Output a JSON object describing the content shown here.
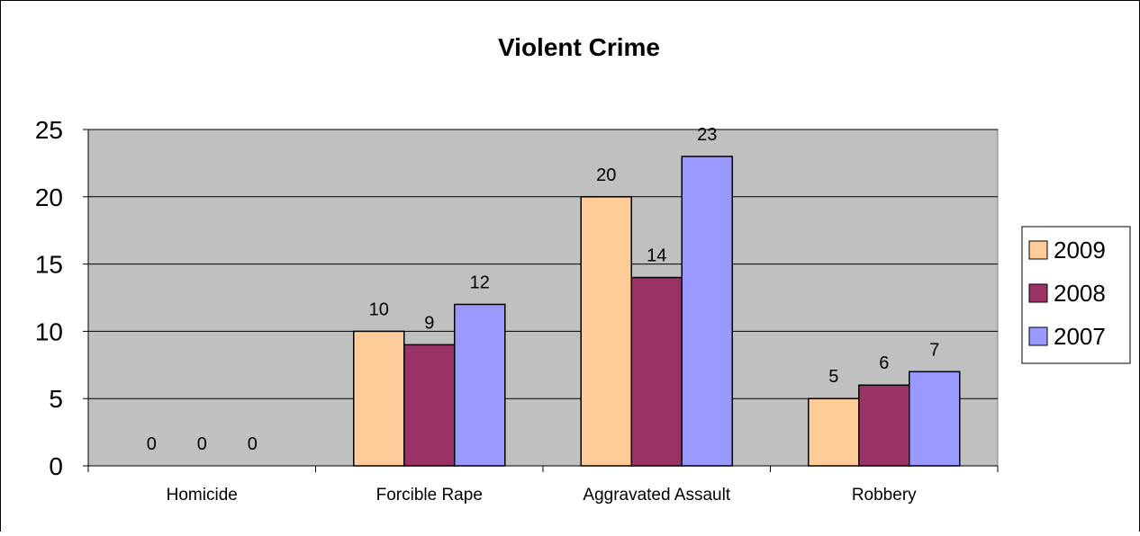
{
  "chart_data": {
    "type": "bar",
    "title": "Violent Crime",
    "categories": [
      "Homicide",
      "Forcible Rape",
      "Aggravated Assault",
      "Robbery"
    ],
    "series": [
      {
        "name": "2009",
        "values": [
          0,
          10,
          20,
          5
        ],
        "color": "#FFCC99"
      },
      {
        "name": "2008",
        "values": [
          0,
          9,
          14,
          6
        ],
        "color": "#993366"
      },
      {
        "name": "2007",
        "values": [
          0,
          12,
          23,
          7
        ],
        "color": "#9999FF"
      }
    ],
    "y_ticks": [
      "0",
      "5",
      "10",
      "15",
      "20",
      "25"
    ],
    "ylim": [
      0,
      25
    ],
    "plot_background": "#C0C0C0",
    "grid": true,
    "legend_position": "right",
    "data_labels": true
  }
}
